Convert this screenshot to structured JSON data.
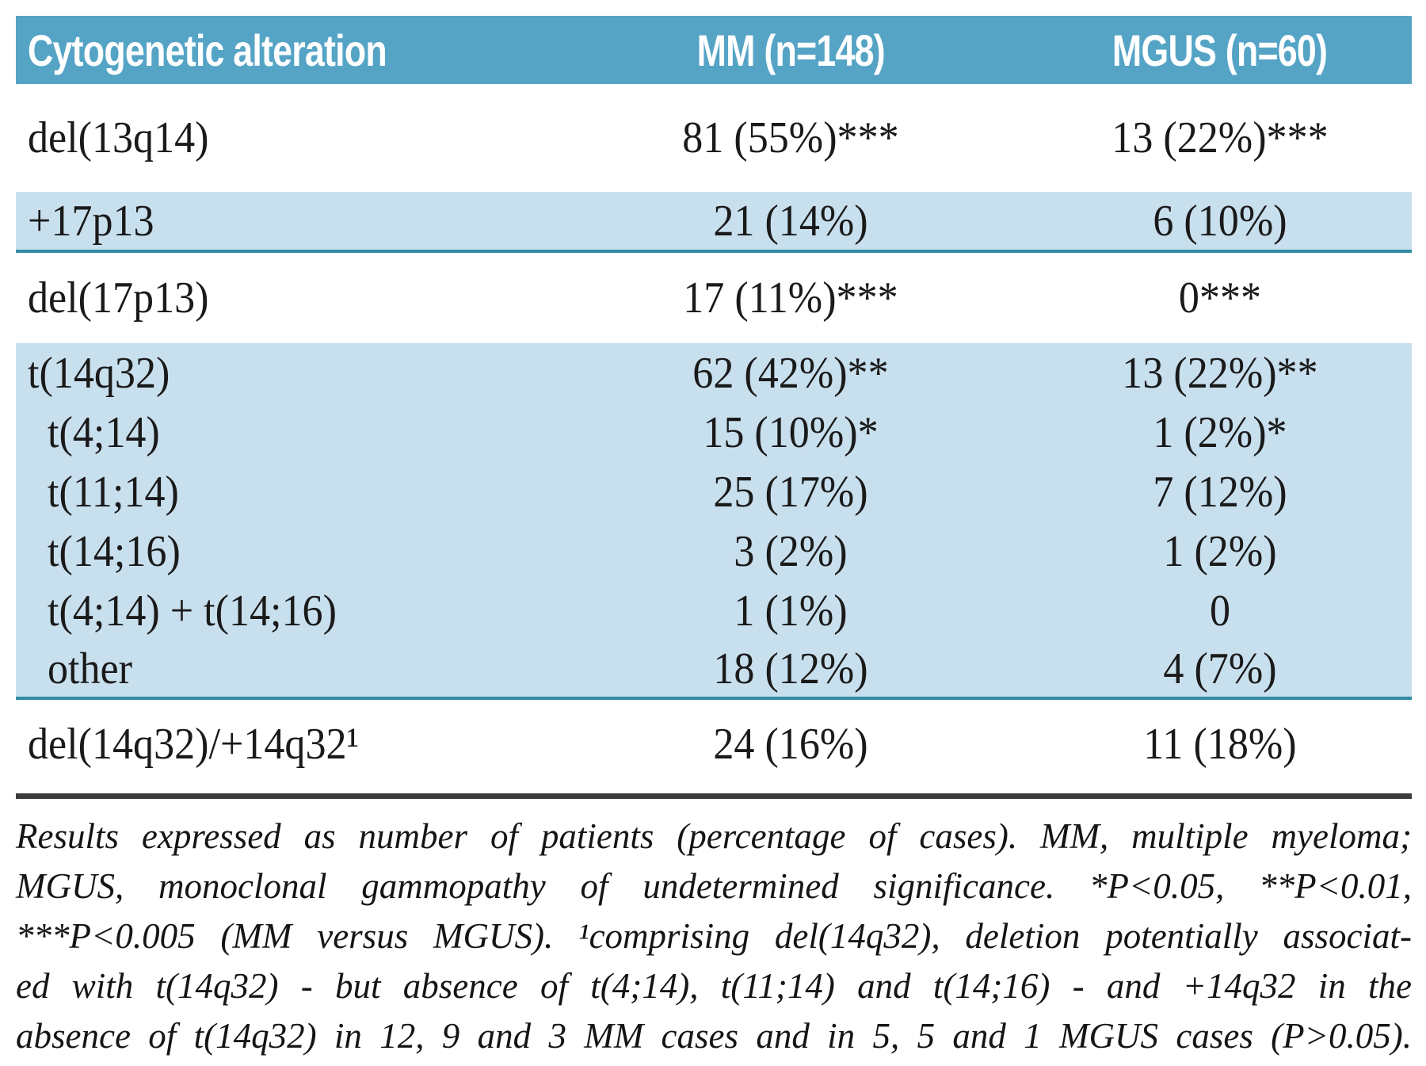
{
  "colors": {
    "header_bg": "#55A4C6",
    "band_bg": "#C8DFEE",
    "teal_line": "#2E8CA4",
    "rule_color": "#3B3B3B",
    "header_text": "#FFFFFF",
    "body_text": "#1A1A1A"
  },
  "table": {
    "columns": [
      "Cytogenetic alteration",
      "MM (n=148)",
      "MGUS (n=60)"
    ],
    "rows": [
      {
        "label": "del(13q14)",
        "mm": "81 (55%)***",
        "mgus": "13 (22%)***"
      },
      {
        "label": "+17p13",
        "mm": "21 (14%)",
        "mgus": "6 (10%)"
      },
      {
        "label": "del(17p13)",
        "mm": "17 (11%)***",
        "mgus": "0***"
      },
      {
        "label": "t(14q32)",
        "mm": "62 (42%)**",
        "mgus": "13 (22%)**"
      },
      {
        "label": "t(4;14)",
        "mm": "15 (10%)*",
        "mgus": "1 (2%)*"
      },
      {
        "label": "t(11;14)",
        "mm": "25 (17%)",
        "mgus": "7 (12%)"
      },
      {
        "label": "t(14;16)",
        "mm": "3 (2%)",
        "mgus": "1 (2%)"
      },
      {
        "label": "t(4;14) + t(14;16)",
        "mm": "1 (1%)",
        "mgus": "0"
      },
      {
        "label": "other",
        "mm": "18 (12%)",
        "mgus": "4 (7%)"
      },
      {
        "label": "del(14q32)/+14q32¹",
        "mm": "24 (16%)",
        "mgus": "11 (18%)"
      }
    ]
  },
  "footnote": {
    "lines": [
      "Results expressed as number of patients (percentage of cases). MM, multiple myeloma;",
      "MGUS, monoclonal gammopathy of undetermined significance. *P<0.05, **P<0.01,",
      "***P<0.005 (MM versus MGUS). ¹comprising del(14q32), deletion potentially associat-",
      "ed with t(14q32) - but absence of t(4;14), t(11;14) and t(14;16) - and +14q32 in the",
      "absence of t(14q32) in 12, 9 and 3 MM cases and in 5, 5 and 1 MGUS cases (P>0.05)."
    ]
  }
}
